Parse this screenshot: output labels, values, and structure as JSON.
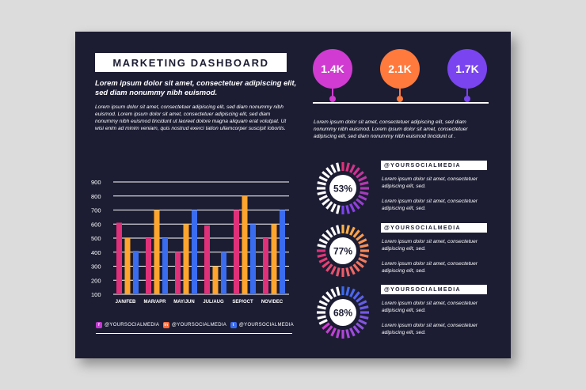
{
  "header": {
    "title": "MARKETING DASHBOARD",
    "subtitle": "Lorem ipsum dolor sit amet, consectetuer adipiscing elit, sed diam nonummy nibh euismod.",
    "paragraph": "Lorem ipsum dolor sit amet, consectetuer adipiscing elit, sed diam nonummy nibh euismod. Lorem ipsum dolor sit amet, consectetuer adipiscing elit, sed diam nonummy nibh euismod tincidunt ut laoreet dolore magna aliquam erat volutpat. Ut wisi enim ad minim veniam, quis nostrud exerci tation ullamcorper suscipit lobortis."
  },
  "pins": [
    {
      "value": "1.4K",
      "color": "#d13bd1"
    },
    {
      "value": "2.1K",
      "color": "#ff7a3c"
    },
    {
      "value": "1.7K",
      "color": "#7a44f0"
    }
  ],
  "pins_paragraph": "Lorem ipsum dolor sit amet, consectetuer adipiscing elit, sed diam nonummy nibh euismod. Lorem ipsum dolor sit amet, consectetuer adipiscing elit, sed diam nonummy nibh euismod tincidunt ut .",
  "stats": [
    {
      "percent": "53%",
      "fraction": 0.53,
      "handle": "@YOURSOCIALMEDIA",
      "text1": "Lorem ipsum dolor sit amet, consectetuer adipiscing elit, sed.",
      "text2": "Lorem ipsum dolor sit amet, consectetuer adipiscing elit, sed.",
      "colors": [
        "#e0307a",
        "#7a44f0"
      ]
    },
    {
      "percent": "77%",
      "fraction": 0.77,
      "handle": "@YOURSOCIALMEDIA",
      "text1": "Lorem ipsum dolor sit amet, consectetuer adipiscing elit, sed.",
      "text2": "Lorem ipsum dolor sit amet, consectetuer adipiscing elit, sed.",
      "colors": [
        "#ffb347",
        "#e0307a"
      ]
    },
    {
      "percent": "68%",
      "fraction": 0.68,
      "handle": "@YOURSOCIALMEDIA",
      "text1": "Lorem ipsum dolor sit amet, consectetuer adipiscing elit, sed.",
      "text2": "Lorem ipsum dolor sit amet, consectetuer adipiscing elit, sed.",
      "colors": [
        "#3a6cf0",
        "#d13bd1"
      ]
    }
  ],
  "chart_data": {
    "type": "bar",
    "categories": [
      "JAN/FEB",
      "MAR/APR",
      "MAY/JUN",
      "JUL/AUG",
      "SEP/OCT",
      "NOV/DEC"
    ],
    "yticks": [
      100,
      200,
      300,
      400,
      500,
      600,
      700,
      800,
      900
    ],
    "ylim": [
      100,
      900
    ],
    "grid": true,
    "series": [
      {
        "values": [
          610,
          500,
          400,
          590,
          700,
          500
        ],
        "color": "#e0307a"
      },
      {
        "values": [
          500,
          700,
          600,
          300,
          800,
          600
        ],
        "color": "#ffa52e"
      },
      {
        "values": [
          410,
          500,
          700,
          400,
          600,
          700
        ],
        "color": "#3a6cf0"
      }
    ]
  },
  "footer": [
    {
      "label": "@YOURSOCIALMEDIA",
      "icon": "facebook-icon",
      "glyph": "f",
      "color": "#c23ad1"
    },
    {
      "label": "@YOURSOCIALMEDIA",
      "icon": "instagram-icon",
      "glyph": "in",
      "color": "#ff6a3c"
    },
    {
      "label": "@YOURSOCIALMEDIA",
      "icon": "twitter-icon",
      "glyph": "t",
      "color": "#3a6cf0"
    }
  ]
}
